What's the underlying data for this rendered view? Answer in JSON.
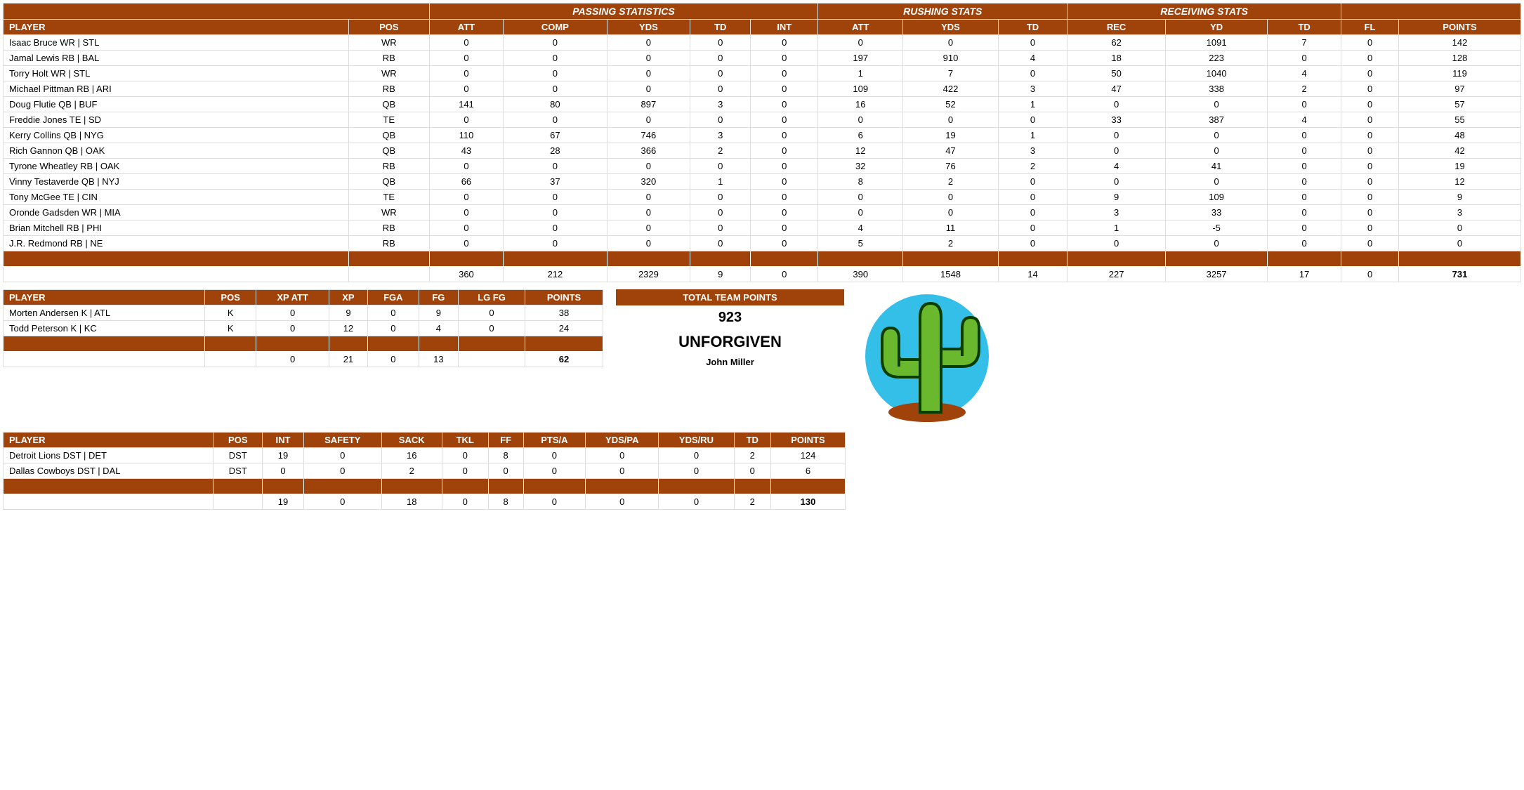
{
  "colors": {
    "header_bg": "#a0430a",
    "header_fg": "#ffffff",
    "row_border": "#dddddd",
    "text": "#000000"
  },
  "mainTable": {
    "groupHeaders": [
      "PASSING STATISTICS",
      "RUSHING STATS",
      "RECEIVING STATS",
      ""
    ],
    "groupSpans": [
      5,
      3,
      3,
      2
    ],
    "cols": [
      "PLAYER",
      "POS",
      "ATT",
      "COMP",
      "YDS",
      "TD",
      "INT",
      "ATT",
      "YDS",
      "TD",
      "REC",
      "YD",
      "TD",
      "FL",
      "POINTS"
    ],
    "rows": [
      [
        "Isaac Bruce WR | STL",
        "WR",
        0,
        0,
        0,
        0,
        0,
        0,
        0,
        0,
        62,
        1091,
        7,
        0,
        142
      ],
      [
        "Jamal Lewis RB | BAL",
        "RB",
        0,
        0,
        0,
        0,
        0,
        197,
        910,
        4,
        18,
        223,
        0,
        0,
        128
      ],
      [
        "Torry Holt WR | STL",
        "WR",
        0,
        0,
        0,
        0,
        0,
        1,
        7,
        0,
        50,
        1040,
        4,
        0,
        119
      ],
      [
        "Michael Pittman RB | ARI",
        "RB",
        0,
        0,
        0,
        0,
        0,
        109,
        422,
        3,
        47,
        338,
        2,
        0,
        97
      ],
      [
        "Doug Flutie QB | BUF",
        "QB",
        141,
        80,
        897,
        3,
        0,
        16,
        52,
        1,
        0,
        0,
        0,
        0,
        57
      ],
      [
        "Freddie Jones TE | SD",
        "TE",
        0,
        0,
        0,
        0,
        0,
        0,
        0,
        0,
        33,
        387,
        4,
        0,
        55
      ],
      [
        "Kerry Collins QB | NYG",
        "QB",
        110,
        67,
        746,
        3,
        0,
        6,
        19,
        1,
        0,
        0,
        0,
        0,
        48
      ],
      [
        "Rich Gannon QB | OAK",
        "QB",
        43,
        28,
        366,
        2,
        0,
        12,
        47,
        3,
        0,
        0,
        0,
        0,
        42
      ],
      [
        "Tyrone Wheatley RB | OAK",
        "RB",
        0,
        0,
        0,
        0,
        0,
        32,
        76,
        2,
        4,
        41,
        0,
        0,
        19
      ],
      [
        "Vinny Testaverde QB | NYJ",
        "QB",
        66,
        37,
        320,
        1,
        0,
        8,
        2,
        0,
        0,
        0,
        0,
        0,
        12
      ],
      [
        "Tony McGee TE | CIN",
        "TE",
        0,
        0,
        0,
        0,
        0,
        0,
        0,
        0,
        9,
        109,
        0,
        0,
        9
      ],
      [
        "Oronde Gadsden WR | MIA",
        "WR",
        0,
        0,
        0,
        0,
        0,
        0,
        0,
        0,
        3,
        33,
        0,
        0,
        3
      ],
      [
        "Brian Mitchell RB | PHI",
        "RB",
        0,
        0,
        0,
        0,
        0,
        4,
        11,
        0,
        1,
        -5,
        0,
        0,
        0
      ],
      [
        "J.R. Redmond RB | NE",
        "RB",
        0,
        0,
        0,
        0,
        0,
        5,
        2,
        0,
        0,
        0,
        0,
        0,
        0
      ]
    ],
    "totals": [
      "",
      "",
      360,
      212,
      2329,
      9,
      0,
      390,
      1548,
      14,
      227,
      3257,
      17,
      0,
      "731"
    ]
  },
  "kickerTable": {
    "cols": [
      "PLAYER",
      "POS",
      "XP ATT",
      "XP",
      "FGA",
      "FG",
      "LG FG",
      "POINTS"
    ],
    "rows": [
      [
        "Morten Andersen K | ATL",
        "K",
        0,
        9,
        0,
        9,
        0,
        38
      ],
      [
        "Todd Peterson K | KC",
        "K",
        0,
        12,
        0,
        4,
        0,
        24
      ]
    ],
    "totals": [
      "",
      "",
      0,
      21,
      0,
      13,
      "",
      "62"
    ]
  },
  "team": {
    "label": "TOTAL TEAM POINTS",
    "points": "923",
    "name": "UNFORGIVEN",
    "owner": "John Miller"
  },
  "defenseTable": {
    "cols": [
      "PLAYER",
      "POS",
      "INT",
      "SAFETY",
      "SACK",
      "TKL",
      "FF",
      "PTS/A",
      "YDS/PA",
      "YDS/RU",
      "TD",
      "POINTS"
    ],
    "rows": [
      [
        "Detroit Lions DST | DET",
        "DST",
        19,
        0,
        16,
        0,
        8,
        0,
        0,
        0,
        2,
        124
      ],
      [
        "Dallas Cowboys DST | DAL",
        "DST",
        0,
        0,
        2,
        0,
        0,
        0,
        0,
        0,
        0,
        6
      ]
    ],
    "totals": [
      "",
      "",
      19,
      0,
      18,
      0,
      8,
      0,
      0,
      0,
      2,
      "130"
    ]
  },
  "logo": {
    "circle_fill": "#34bfe8",
    "cactus_fill": "#6ab82e",
    "cactus_stroke": "#0c3d00",
    "ground_fill": "#a0430a"
  }
}
